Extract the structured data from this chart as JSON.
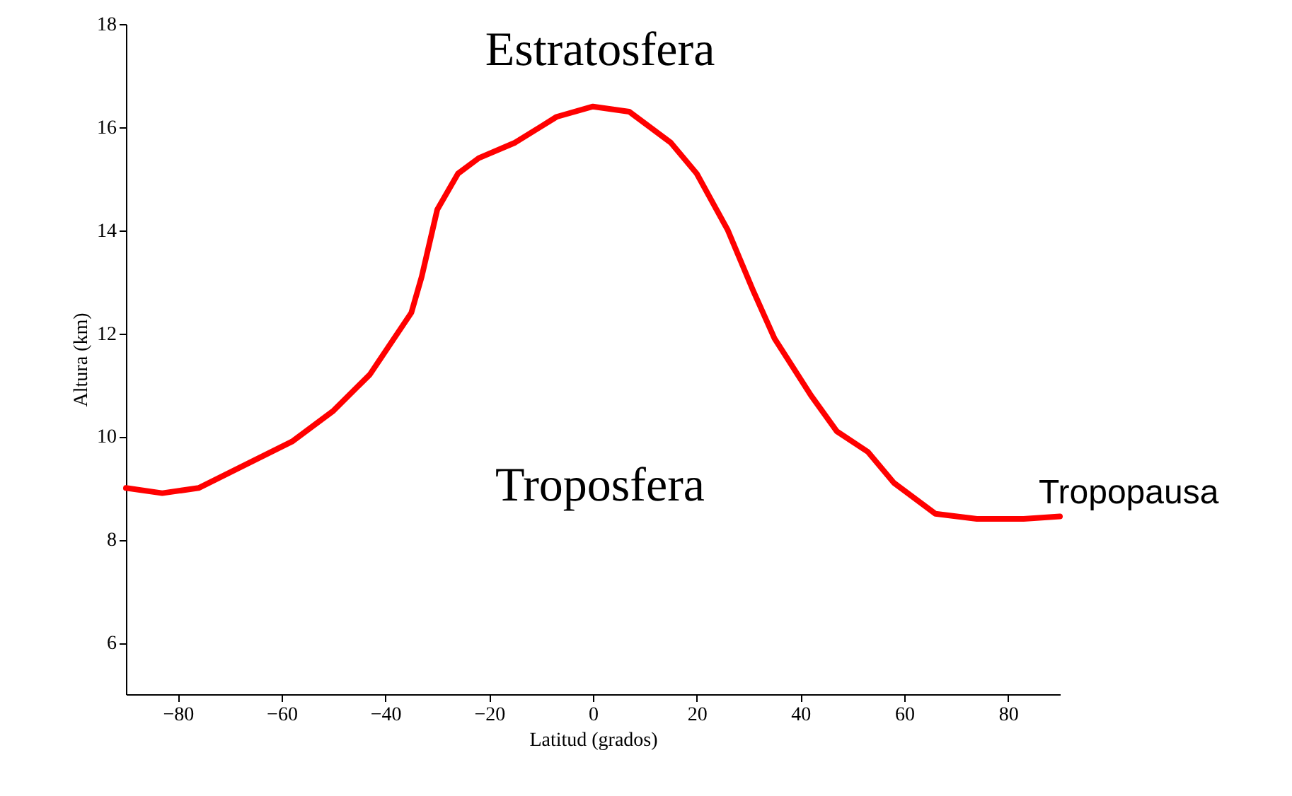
{
  "chart_data": {
    "type": "line",
    "xlabel": "Latitud (grados)",
    "ylabel": "Altura (km)",
    "x": [
      -90,
      -83,
      -76,
      -68,
      -58,
      -50,
      -43,
      -35,
      -33,
      -30,
      -26,
      -22,
      -15,
      -7,
      0,
      7,
      15,
      20,
      26,
      31,
      35,
      42,
      47,
      53,
      58,
      66,
      74,
      83,
      90
    ],
    "series": [
      {
        "color": "#ff0000",
        "values": [
          9.0,
          8.9,
          9.0,
          9.4,
          9.9,
          10.5,
          11.2,
          12.4,
          13.1,
          14.4,
          15.1,
          15.4,
          15.7,
          16.2,
          16.4,
          16.3,
          15.7,
          15.1,
          14.0,
          12.8,
          11.9,
          10.8,
          10.1,
          9.7,
          9.1,
          8.5,
          8.4,
          8.4,
          8.45
        ]
      }
    ],
    "xlim": [
      -90,
      90
    ],
    "ylim": [
      5,
      18
    ],
    "xticks": [
      -80,
      -60,
      -40,
      -20,
      0,
      20,
      40,
      60,
      80
    ],
    "yticks": [
      6,
      8,
      10,
      12,
      14,
      16,
      18
    ],
    "grid": false,
    "marker": "none",
    "line_style": "solid",
    "annotations": [
      "Estratosfera",
      "Troposfera",
      {
        "text": "Tropopausa",
        "x": 90,
        "y": 8.45
      }
    ]
  }
}
